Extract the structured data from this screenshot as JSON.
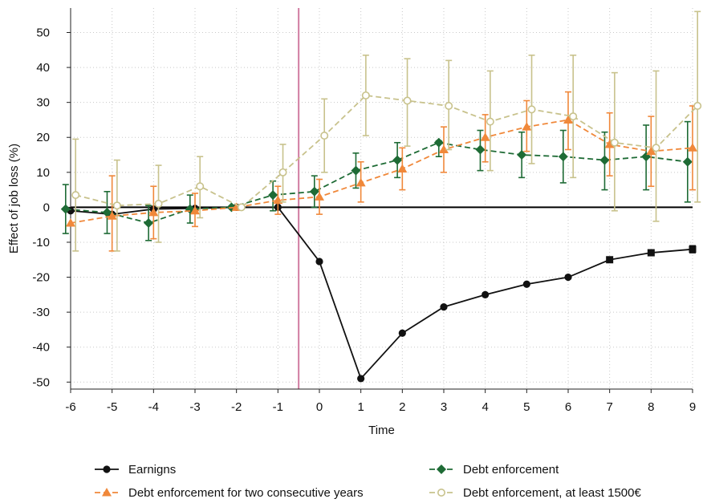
{
  "chart_data": {
    "type": "line",
    "xlabel": "Time",
    "ylabel": "Effect of job loss (%)",
    "xlim": [
      -6,
      9
    ],
    "ylim": [
      -52,
      57
    ],
    "xticks": [
      -6,
      -5,
      -4,
      -3,
      -2,
      -1,
      0,
      1,
      2,
      3,
      4,
      5,
      6,
      7,
      8,
      9
    ],
    "yticks": [
      -50,
      -40,
      -30,
      -20,
      -10,
      0,
      10,
      20,
      30,
      40,
      50
    ],
    "grid": true,
    "vertical_line_x": -0.5,
    "legend_position": "bottom",
    "colors": {
      "earnings": "#111111",
      "debt_enforcement": "#1e6b35",
      "two_consecutive": "#f0883a",
      "at_least_1500": "#c8c28c",
      "vline": "#d17ba1",
      "grid": "#c8c8c8"
    },
    "series": [
      {
        "name": "Earnigns",
        "key": "earnings",
        "marker": "circle-filled",
        "dash": "solid",
        "offset": 0,
        "x": [
          -6,
          -5,
          -4,
          -3,
          -2,
          -1,
          0,
          1,
          2,
          3,
          4,
          5,
          6,
          7,
          8,
          9
        ],
        "y": [
          -1,
          -2,
          -0.5,
          -0.3,
          0,
          0,
          -15.5,
          -49,
          -36,
          -28.5,
          -25,
          -22,
          -20,
          -15,
          -13,
          -12
        ],
        "ci_low": [
          null,
          null,
          null,
          null,
          null,
          null,
          null,
          null,
          null,
          null,
          null,
          null,
          null,
          null,
          null,
          -13
        ],
        "ci_high": [
          null,
          null,
          null,
          null,
          null,
          null,
          null,
          null,
          null,
          null,
          null,
          null,
          null,
          null,
          null,
          -11
        ]
      },
      {
        "name": "Debt enforcement",
        "key": "debt_enforcement",
        "marker": "diamond-filled",
        "dash": "dashed",
        "offset": -0.12,
        "x": [
          -6,
          -5,
          -4,
          -3,
          -2,
          -1,
          0,
          1,
          2,
          3,
          4,
          5,
          6,
          7,
          8,
          9
        ],
        "y": [
          -0.5,
          -1.5,
          -4.5,
          -0.5,
          0,
          3.5,
          4.5,
          10.5,
          13.5,
          18.5,
          16.5,
          15,
          14.5,
          13.5,
          14.5,
          13
        ],
        "ci_low": [
          -7.5,
          -7.5,
          -9.5,
          -4.5,
          null,
          -1,
          0,
          5.5,
          8.5,
          14.5,
          10.5,
          8.5,
          7,
          5,
          5,
          1.5
        ],
        "ci_high": [
          6.5,
          4.5,
          0.5,
          3.5,
          null,
          7.5,
          9,
          15.5,
          18.5,
          19,
          22,
          21.5,
          22,
          21.5,
          23.5,
          24.5
        ]
      },
      {
        "name": "Debt enforcement for two consecutive years",
        "key": "two_consecutive",
        "marker": "triangle-filled",
        "dash": "dashed",
        "offset": 0,
        "x": [
          -6,
          -5,
          -4,
          -3,
          -2,
          -1,
          0,
          1,
          2,
          3,
          4,
          5,
          6,
          7,
          8,
          9
        ],
        "y": [
          -4.5,
          -2.5,
          -1.5,
          -1,
          0,
          2,
          3,
          7,
          11,
          16.5,
          20,
          23,
          25,
          18,
          16,
          17
        ],
        "ci_low": [
          null,
          -12.5,
          -9,
          -5.5,
          null,
          -2,
          -2,
          1.5,
          5,
          10,
          13,
          16,
          16.5,
          9,
          6,
          5
        ],
        "ci_high": [
          null,
          9,
          6,
          4,
          null,
          6,
          8,
          13,
          17,
          23,
          26.5,
          30.5,
          33,
          27,
          26,
          29
        ]
      },
      {
        "name": "Debt enforcement, at least 1500€",
        "key": "at_least_1500",
        "marker": "circle-hollow",
        "dash": "dashed",
        "offset": 0.12,
        "x": [
          -6,
          -5,
          -4,
          -3,
          -2,
          -1,
          0,
          1,
          2,
          3,
          4,
          5,
          6,
          7,
          8,
          9
        ],
        "y": [
          3.5,
          0.5,
          1,
          6,
          0,
          10,
          20.5,
          32,
          30.5,
          29,
          24.5,
          28,
          26,
          18.5,
          17,
          29
        ],
        "ci_low": [
          -12.5,
          -12.5,
          -10,
          -3,
          null,
          1.5,
          10,
          20.5,
          17.5,
          16.5,
          10.5,
          12.5,
          8.5,
          -1,
          -4,
          1.5
        ],
        "ci_high": [
          19.5,
          13.5,
          12,
          14.5,
          null,
          18,
          31,
          43.5,
          42.5,
          42,
          39,
          43.5,
          43.5,
          38.5,
          39,
          56
        ]
      }
    ],
    "legend": [
      {
        "label": "Earnigns",
        "key": "earnings"
      },
      {
        "label": "Debt enforcement",
        "key": "debt_enforcement"
      },
      {
        "label": "Debt enforcement for two consecutive years",
        "key": "two_consecutive"
      },
      {
        "label": "Debt enforcement, at least 1500€",
        "key": "at_least_1500"
      }
    ]
  }
}
